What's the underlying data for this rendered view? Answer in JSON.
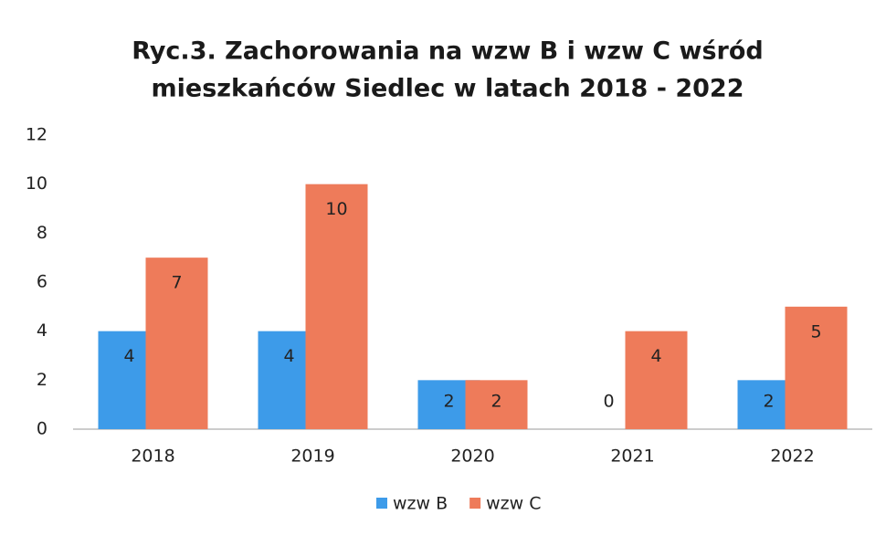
{
  "chart_data": {
    "type": "bar",
    "title": [
      "Ryc.3. Zachorowania na wzw B i wzw C wśród",
      "mieszkańców Siedlec w latach 2018 - 2022"
    ],
    "categories": [
      "2018",
      "2019",
      "2020",
      "2021",
      "2022"
    ],
    "series": [
      {
        "name": "wzw B",
        "color": "#3d9be9",
        "values": [
          4,
          4,
          2,
          0,
          2
        ]
      },
      {
        "name": "wzw C",
        "color": "#ee7b5a",
        "values": [
          7,
          10,
          2,
          4,
          5
        ]
      }
    ],
    "ylim": [
      0,
      12
    ],
    "yticks": [
      0,
      2,
      4,
      6,
      8,
      10,
      12
    ],
    "grid": false,
    "legend": "bottom"
  }
}
